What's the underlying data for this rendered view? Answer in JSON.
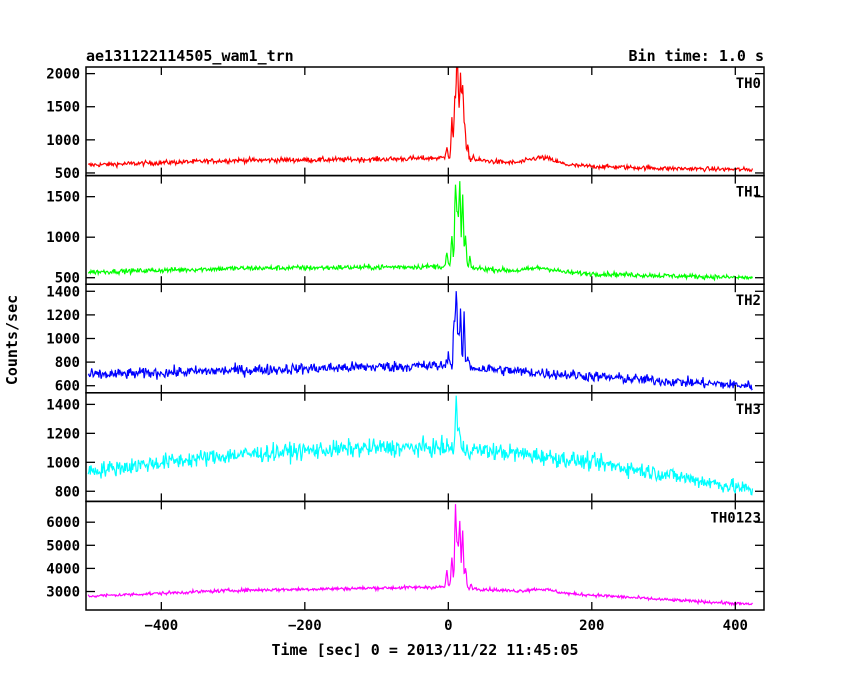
{
  "chart_data": {
    "type": "line",
    "title": "ae131122114505_wam1_trn",
    "subtitle": "Bin time: 1.0 s",
    "xlabel": "Time [sec] 0 = 2013/11/22 11:45:05",
    "ylabel": "Counts/sec",
    "xlim": [
      -505,
      440
    ],
    "x_ticks": [
      -400,
      -200,
      0,
      200,
      400
    ],
    "x_tick_labels": [
      "−400",
      "−200",
      "0",
      "200",
      "400"
    ],
    "grid": false,
    "legend": "none",
    "panels": [
      {
        "name": "TH0",
        "color": "#ff0000",
        "ylim": [
          460,
          2100
        ],
        "y_ticks": [
          500,
          1000,
          1500,
          2000
        ],
        "y_tick_labels": [
          "500",
          "1000",
          "1500",
          "2000"
        ],
        "noise": 35,
        "baseline": [
          [
            -500,
            620
          ],
          [
            -300,
            690
          ],
          [
            -100,
            705
          ],
          [
            0,
            730
          ],
          [
            100,
            640
          ],
          [
            200,
            600
          ],
          [
            300,
            570
          ],
          [
            420,
            550
          ]
        ],
        "features": [
          [
            -2,
            920
          ],
          [
            5,
            1300
          ],
          [
            9,
            1600
          ],
          [
            12,
            2060
          ],
          [
            14,
            1450
          ],
          [
            17,
            1950
          ],
          [
            20,
            1800
          ],
          [
            23,
            1200
          ],
          [
            27,
            900
          ],
          [
            35,
            760
          ],
          [
            130,
            730
          ]
        ]
      },
      {
        "name": "TH1",
        "color": "#00ff00",
        "ylim": [
          420,
          1760
        ],
        "y_ticks": [
          500,
          1000,
          1500
        ],
        "y_tick_labels": [
          "500",
          "1000",
          "1500"
        ],
        "noise": 30,
        "baseline": [
          [
            -500,
            570
          ],
          [
            -300,
            615
          ],
          [
            -100,
            630
          ],
          [
            0,
            640
          ],
          [
            100,
            580
          ],
          [
            200,
            550
          ],
          [
            300,
            525
          ],
          [
            420,
            500
          ]
        ],
        "features": [
          [
            -2,
            800
          ],
          [
            5,
            1000
          ],
          [
            10,
            1700
          ],
          [
            13,
            1250
          ],
          [
            16,
            1650
          ],
          [
            20,
            1500
          ],
          [
            24,
            1000
          ],
          [
            30,
            720
          ],
          [
            130,
            620
          ]
        ]
      },
      {
        "name": "TH2",
        "color": "#0000ff",
        "ylim": [
          540,
          1460
        ],
        "y_ticks": [
          600,
          800,
          1000,
          1200,
          1400
        ],
        "y_tick_labels": [
          "600",
          "800",
          "1000",
          "1200",
          "1400"
        ],
        "noise": 45,
        "baseline": [
          [
            -500,
            690
          ],
          [
            -300,
            730
          ],
          [
            -100,
            760
          ],
          [
            0,
            770
          ],
          [
            100,
            720
          ],
          [
            200,
            680
          ],
          [
            300,
            640
          ],
          [
            420,
            600
          ]
        ],
        "features": [
          [
            0,
            900
          ],
          [
            8,
            1120
          ],
          [
            11,
            1420
          ],
          [
            14,
            1000
          ],
          [
            17,
            1200
          ],
          [
            22,
            1150
          ],
          [
            27,
            850
          ]
        ]
      },
      {
        "name": "TH3",
        "color": "#00ffff",
        "ylim": [
          730,
          1480
        ],
        "y_ticks": [
          800,
          1000,
          1200,
          1400
        ],
        "y_tick_labels": [
          "800",
          "1000",
          "1200",
          "1400"
        ],
        "noise": 55,
        "baseline": [
          [
            -500,
            940
          ],
          [
            -400,
            1000
          ],
          [
            -300,
            1050
          ],
          [
            -200,
            1080
          ],
          [
            -100,
            1100
          ],
          [
            0,
            1100
          ],
          [
            100,
            1060
          ],
          [
            200,
            1000
          ],
          [
            300,
            920
          ],
          [
            420,
            810
          ]
        ],
        "features": [
          [
            11,
            1460
          ],
          [
            15,
            1250
          ]
        ]
      },
      {
        "name": "TH0123",
        "color": "#ff00ff",
        "ylim": [
          2200,
          6900
        ],
        "y_ticks": [
          3000,
          4000,
          5000,
          6000
        ],
        "y_tick_labels": [
          "3000",
          "4000",
          "5000",
          "6000"
        ],
        "noise": 70,
        "baseline": [
          [
            -500,
            2800
          ],
          [
            -300,
            3050
          ],
          [
            -100,
            3150
          ],
          [
            0,
            3200
          ],
          [
            100,
            3000
          ],
          [
            200,
            2850
          ],
          [
            300,
            2650
          ],
          [
            420,
            2450
          ]
        ],
        "features": [
          [
            -2,
            3900
          ],
          [
            5,
            4500
          ],
          [
            10,
            6700
          ],
          [
            13,
            4900
          ],
          [
            16,
            6000
          ],
          [
            20,
            5600
          ],
          [
            24,
            4000
          ],
          [
            32,
            3300
          ],
          [
            130,
            3100
          ]
        ]
      }
    ]
  }
}
